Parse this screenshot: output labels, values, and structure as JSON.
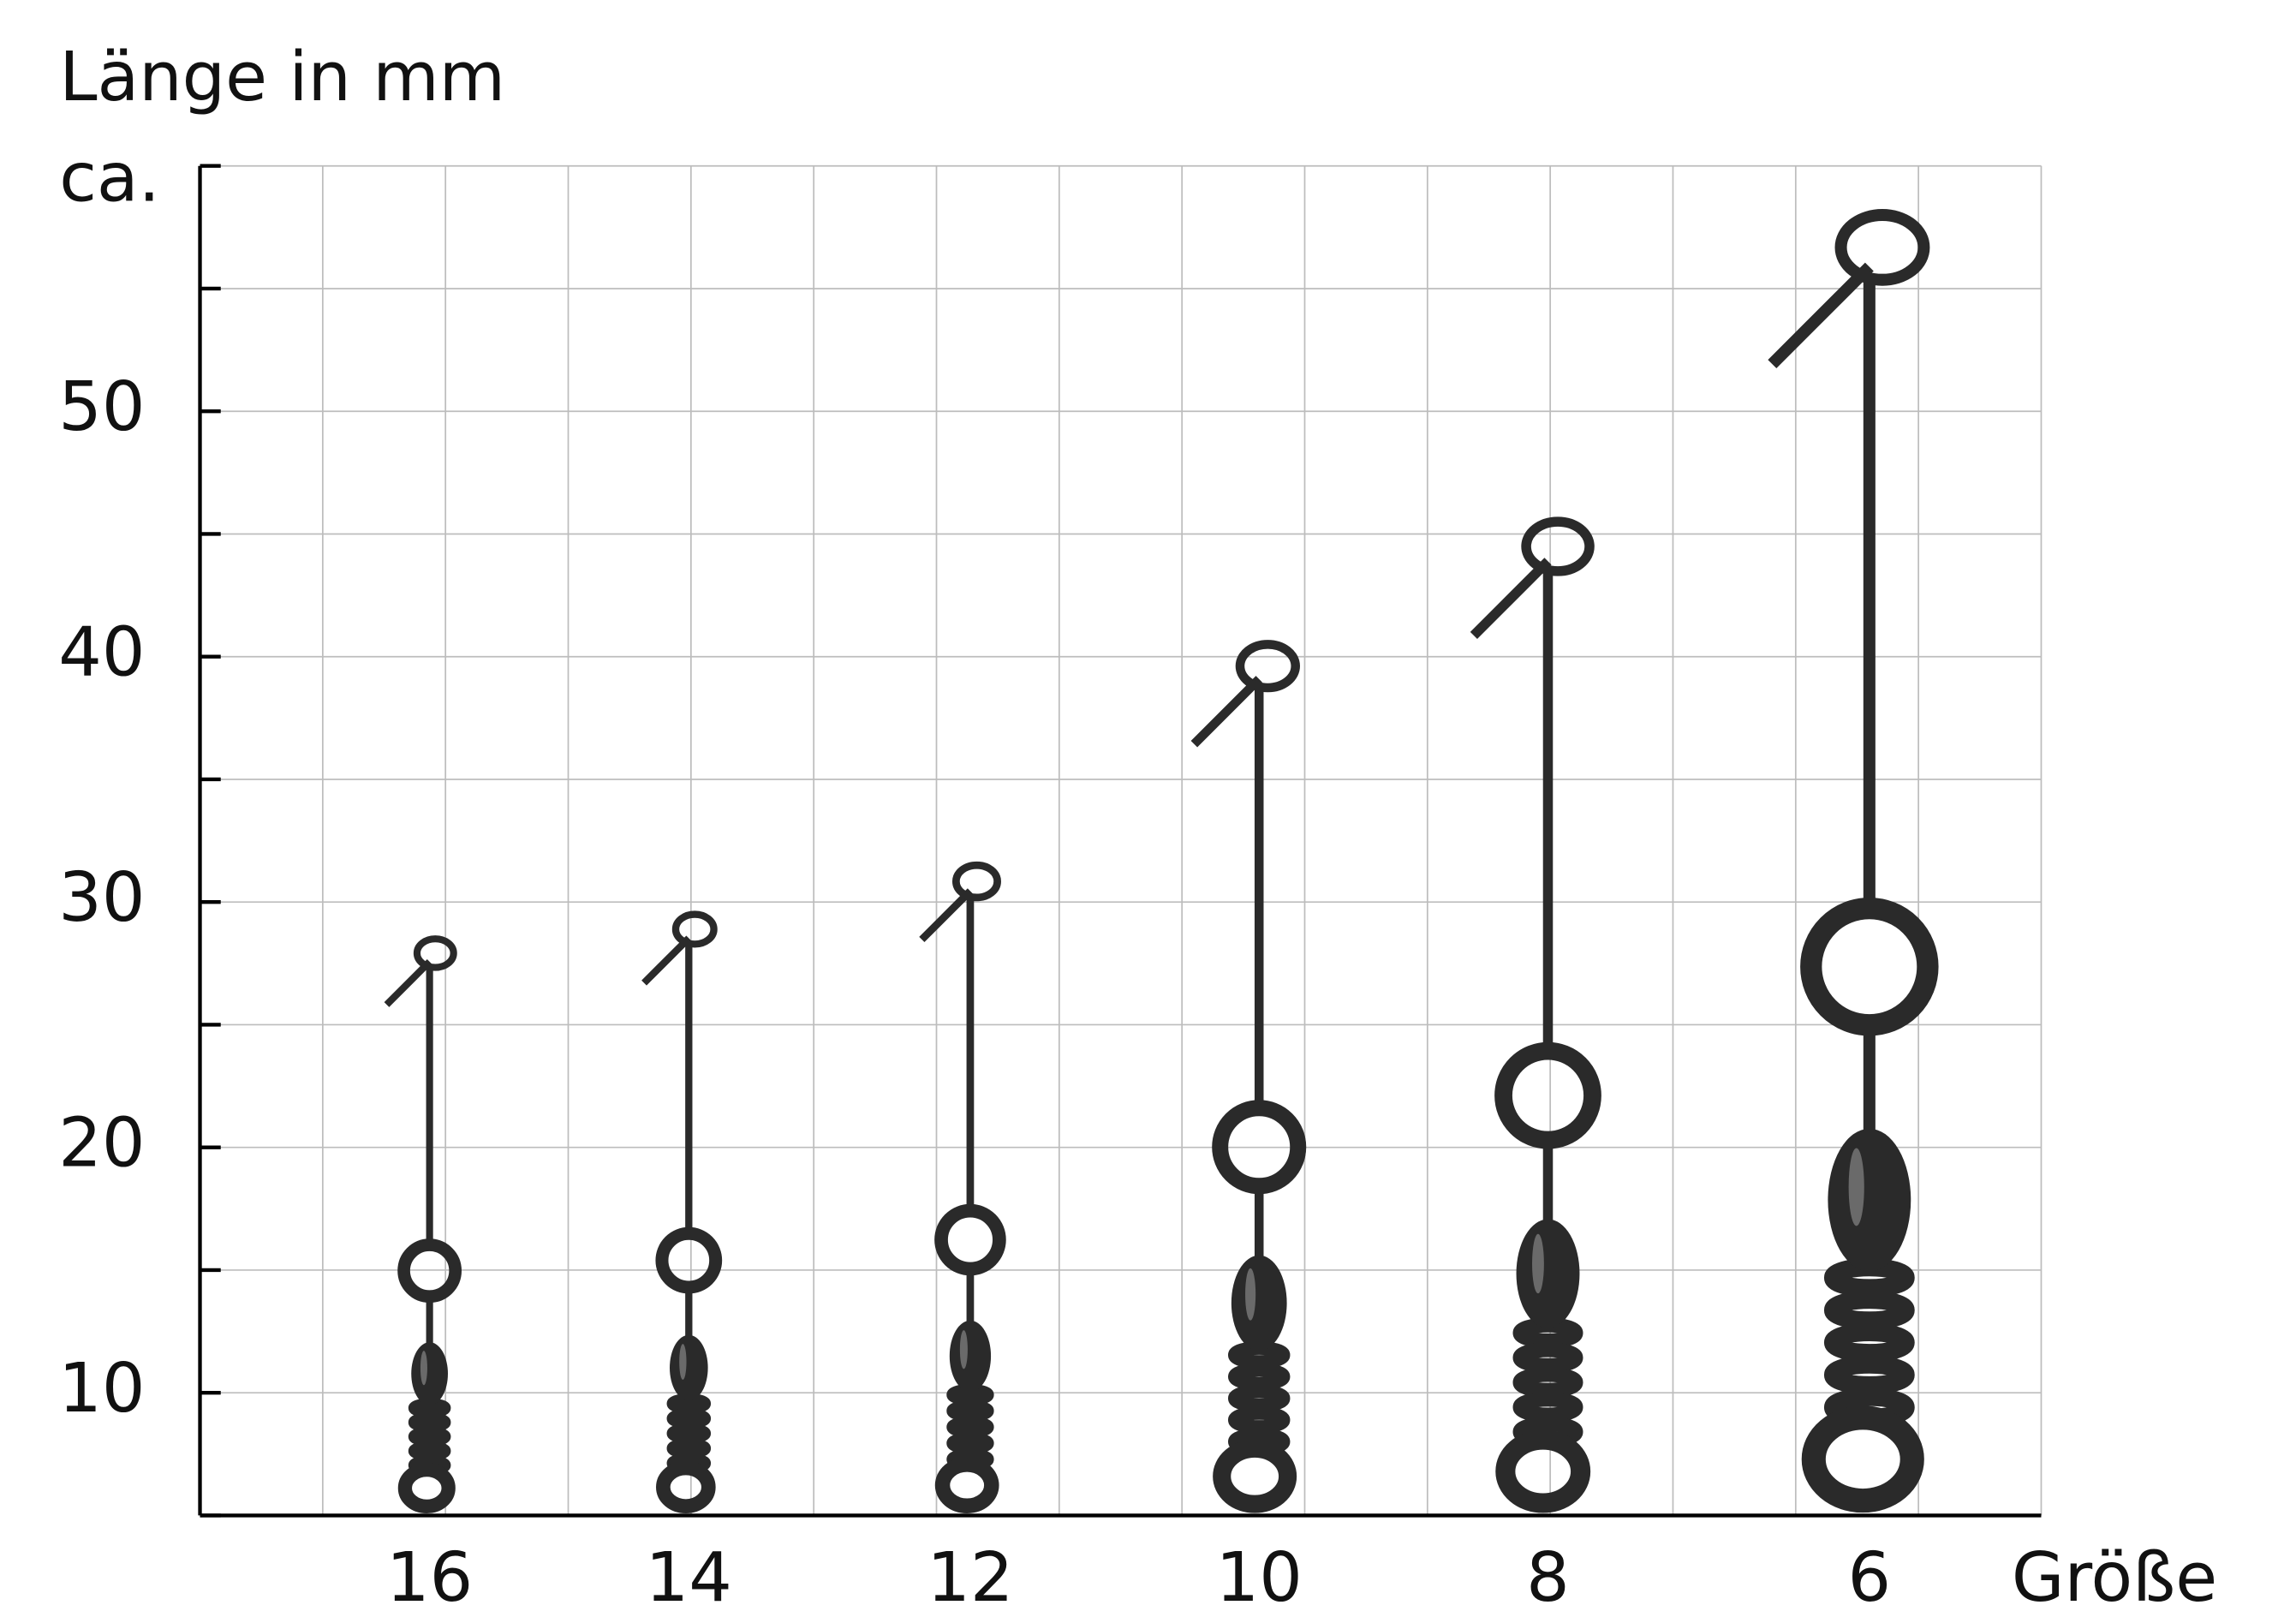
{
  "chart_data": {
    "type": "swivel-size",
    "y_label_lines": [
      "Länge in mm",
      "ca."
    ],
    "x_label": "Größe",
    "categories": [
      "16",
      "14",
      "12",
      "10",
      "8",
      "6"
    ],
    "values": [
      28.5,
      29.5,
      31.5,
      40.5,
      45.5,
      58
    ],
    "ylim": [
      5,
      60
    ],
    "yticks": [
      10,
      20,
      30,
      40,
      50
    ],
    "minor_yticks": [
      5,
      15,
      25,
      35,
      45,
      55,
      60
    ],
    "grid": true,
    "color": "#2a2a2a"
  }
}
